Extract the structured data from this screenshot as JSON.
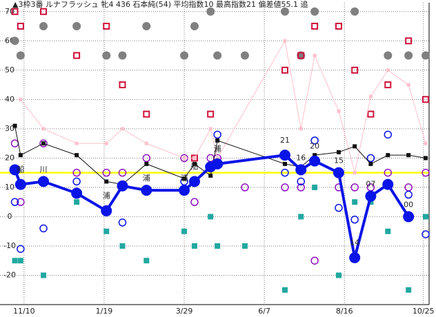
{
  "chart_data": {
    "type": "line",
    "title": "▲3枠3番 ルナフラッシュ 牝4 436 石本純(54) 平均指数10 最高指数21 偏差値55.1 追",
    "xlim": [
      -21,
      354
    ],
    "ylim": [
      -30,
      73
    ],
    "xticks": [
      {
        "value": 0,
        "label": "11/10"
      },
      {
        "value": 70,
        "label": "1/19"
      },
      {
        "value": 140,
        "label": "3/29"
      },
      {
        "value": 210,
        "label": "6/7"
      },
      {
        "value": 280,
        "label": "8/16"
      },
      {
        "value": 349,
        "label": "10/25"
      }
    ],
    "yticks": [
      70,
      60,
      50,
      40,
      30,
      20,
      10,
      0,
      -10,
      -20
    ],
    "grid": true,
    "reference_line": {
      "value": 15,
      "color": "#ffff00"
    },
    "x": [
      -8,
      -3,
      17,
      46,
      72,
      86,
      107,
      140,
      149,
      163,
      169,
      228,
      242,
      254,
      275,
      289,
      303,
      318,
      336,
      351
    ],
    "series": [
      {
        "style": "thin-line",
        "color": "#ffc0cb",
        "values": [
          null,
          40,
          30,
          25,
          25,
          30,
          25,
          20,
          20,
          30,
          20,
          60,
          30,
          55,
          36,
          15,
          41,
          50,
          45,
          25
        ]
      },
      {
        "style": "square-line",
        "color": "#111111",
        "values": [
          31,
          21,
          25,
          21,
          12,
          11,
          18,
          13,
          18,
          14,
          26,
          18,
          17,
          21,
          22,
          24,
          18,
          21,
          21,
          20
        ]
      },
      {
        "style": "thick-line",
        "color": "#0a14e6",
        "values": [
          16,
          11,
          12,
          8,
          2,
          10.5,
          9,
          9,
          12,
          17,
          18,
          21,
          16,
          19,
          15,
          -14,
          7,
          11,
          0,
          null
        ]
      }
    ],
    "markers": [
      {
        "style": "filled-circle",
        "color": "#808080",
        "x": [
          -8,
          -3,
          17,
          46,
          72,
          86,
          107,
          140,
          149,
          163,
          169,
          193,
          228,
          242,
          254,
          289,
          318,
          336,
          351
        ],
        "values": [
          60,
          55,
          65,
          65,
          55,
          55,
          65,
          55,
          65,
          70,
          55,
          55,
          70,
          55,
          70,
          70,
          55,
          55,
          55
        ]
      },
      {
        "style": "hollow-square",
        "color": "#d0103a",
        "x": [
          -8,
          -3,
          17,
          46,
          72,
          86,
          107,
          149,
          163,
          228,
          242,
          254,
          275,
          289,
          303,
          318,
          336,
          351
        ],
        "values": [
          70,
          65,
          70,
          55,
          65,
          45,
          35,
          20,
          35,
          50,
          55,
          65,
          65,
          50,
          35,
          45,
          60,
          40
        ]
      },
      {
        "style": "filled-square",
        "color": "#20a8a0",
        "x": [
          -8,
          -3,
          17,
          46,
          72,
          86,
          107,
          140,
          149,
          163,
          169,
          193,
          228,
          242,
          254,
          275,
          289,
          303,
          318,
          336,
          351
        ],
        "values": [
          -15,
          -15,
          -20,
          5,
          -5,
          -10,
          -15,
          -5,
          -10,
          0,
          -10,
          -10,
          -25,
          0,
          10,
          -20,
          5,
          5,
          -5,
          -25,
          0
        ]
      },
      {
        "style": "hollow-circle",
        "color": "#9010c0",
        "x": [
          -8,
          -3,
          17,
          46,
          72,
          86,
          107,
          140,
          149,
          163,
          169,
          193,
          228,
          242,
          254,
          275,
          289,
          303,
          318,
          336,
          351
        ],
        "values": [
          25,
          5,
          25,
          15,
          15,
          15,
          20,
          20,
          5,
          20,
          20,
          10,
          10,
          10,
          -15,
          10,
          10,
          10,
          15,
          10,
          15
        ]
      },
      {
        "style": "hollow-circle",
        "color": "#0a14e6",
        "x": [
          -8,
          -3,
          17,
          46,
          86,
          140,
          169,
          228,
          242,
          254,
          275,
          289,
          303,
          318,
          336,
          351
        ],
        "values": [
          5,
          -11,
          -4,
          12,
          -2,
          12,
          28,
          15,
          12,
          26,
          3,
          -1,
          20,
          28,
          7.5,
          -6
        ]
      }
    ],
    "annotations": [
      {
        "text": "船",
        "x": -3,
        "y": 16
      },
      {
        "text": "川",
        "x": 17,
        "y": 16
      },
      {
        "text": "浦",
        "x": 72,
        "y": 7
      },
      {
        "text": "浦",
        "x": 107,
        "y": 13
      },
      {
        "text": "浦",
        "x": 140,
        "y": 13
      },
      {
        "text": "船",
        "x": 149,
        "y": 17
      },
      {
        "text": "浦",
        "x": 169,
        "y": 23
      },
      {
        "text": "21",
        "x": 228,
        "y": 26
      },
      {
        "text": "16",
        "x": 242,
        "y": 20
      },
      {
        "text": "20",
        "x": 254,
        "y": 24
      },
      {
        "text": "15",
        "x": 275,
        "y": 19
      },
      {
        "text": "14",
        "x": 289,
        "y": -9
      },
      {
        "text": "07",
        "x": 303,
        "y": 11
      },
      {
        "text": "00",
        "x": 336,
        "y": 4
      }
    ]
  }
}
